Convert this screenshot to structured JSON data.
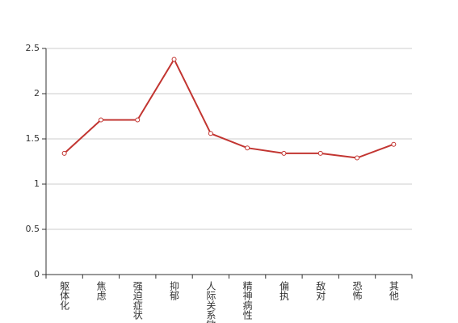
{
  "chart_data": {
    "type": "line",
    "categories": [
      "躯体化",
      "焦虑",
      "强迫症状",
      "抑郁",
      "人际关系敏感",
      "精神病性",
      "偏执",
      "敌对",
      "恐怖",
      "其他"
    ],
    "values": [
      1.34,
      1.71,
      1.71,
      2.38,
      1.56,
      1.4,
      1.34,
      1.34,
      1.29,
      1.44
    ],
    "color": "#c23531",
    "ylim": [
      0,
      2.5
    ],
    "yticks": [
      0,
      0.5,
      1,
      1.5,
      2,
      2.5
    ],
    "grid": true
  }
}
